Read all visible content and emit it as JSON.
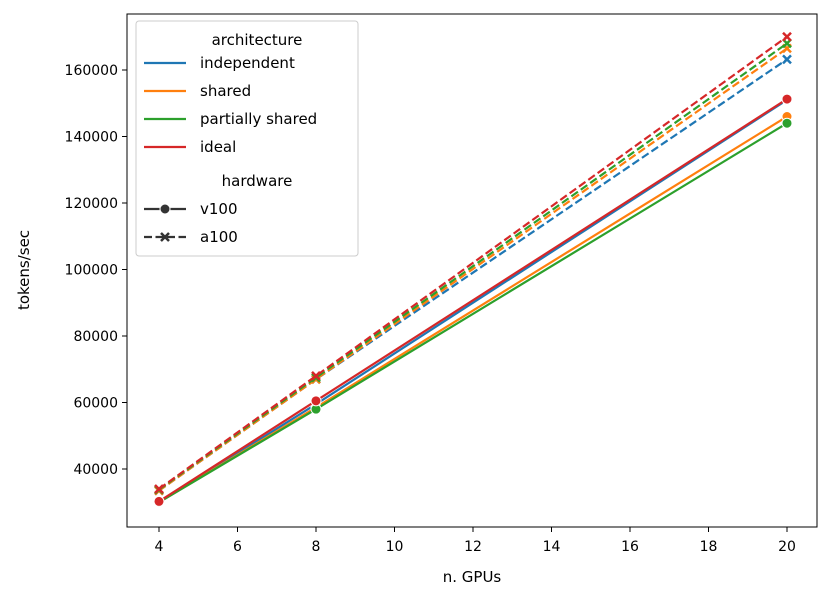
{
  "chart_data": {
    "type": "line",
    "xlabel": "n. GPUs",
    "ylabel": "tokens/sec",
    "xlim": [
      3.2,
      20.8
    ],
    "ylim": [
      22000,
      177000
    ],
    "xticks": [
      4,
      6,
      8,
      10,
      12,
      14,
      16,
      18,
      20
    ],
    "yticks": [
      40000,
      60000,
      80000,
      100000,
      120000,
      140000,
      160000
    ],
    "grid": false,
    "legend": {
      "placement": "top-left",
      "hue_title": "architecture",
      "style_title": "hardware",
      "hue_entries": [
        {
          "label": "independent",
          "color": "#1f77b4"
        },
        {
          "label": "shared",
          "color": "#ff7f0e"
        },
        {
          "label": "partially shared",
          "color": "#2ca02c"
        },
        {
          "label": "ideal",
          "color": "#d62728"
        }
      ],
      "style_entries": [
        {
          "label": "v100",
          "dash": "solid",
          "marker": "circle"
        },
        {
          "label": "a100",
          "dash": "dashed",
          "marker": "x"
        }
      ]
    },
    "x": [
      4,
      8,
      20
    ],
    "series": [
      {
        "architecture": "independent",
        "hardware": "v100",
        "color": "#1f77b4",
        "values": [
          30000,
          59500,
          151000
        ]
      },
      {
        "architecture": "shared",
        "hardware": "v100",
        "color": "#ff7f0e",
        "values": [
          30000,
          58500,
          146000
        ]
      },
      {
        "architecture": "partially shared",
        "hardware": "v100",
        "color": "#2ca02c",
        "values": [
          30000,
          58000,
          144000
        ]
      },
      {
        "architecture": "ideal",
        "hardware": "v100",
        "color": "#d62728",
        "values": [
          30250,
          60500,
          151250
        ]
      },
      {
        "architecture": "independent",
        "hardware": "a100",
        "color": "#1f77b4",
        "values": [
          33500,
          67000,
          163200
        ]
      },
      {
        "architecture": "shared",
        "hardware": "a100",
        "color": "#ff7f0e",
        "values": [
          33500,
          67000,
          166500
        ]
      },
      {
        "architecture": "partially shared",
        "hardware": "a100",
        "color": "#2ca02c",
        "values": [
          33800,
          67500,
          168000
        ]
      },
      {
        "architecture": "ideal",
        "hardware": "a100",
        "color": "#d62728",
        "values": [
          34000,
          68000,
          170000
        ]
      }
    ]
  }
}
